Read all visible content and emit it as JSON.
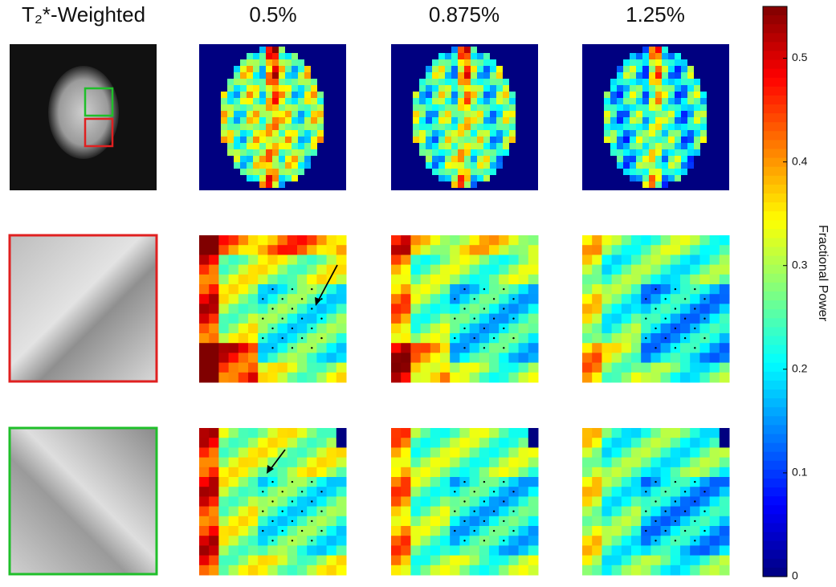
{
  "columns": [
    "T₂*-Weighted",
    "0.5%",
    "0.875%",
    "1.25%"
  ],
  "colorbar": {
    "label": "Fractional Power",
    "lim": [
      0,
      0.55
    ],
    "ticks": [
      0,
      0.1,
      0.2,
      0.3,
      0.4,
      0.5
    ]
  }
}
